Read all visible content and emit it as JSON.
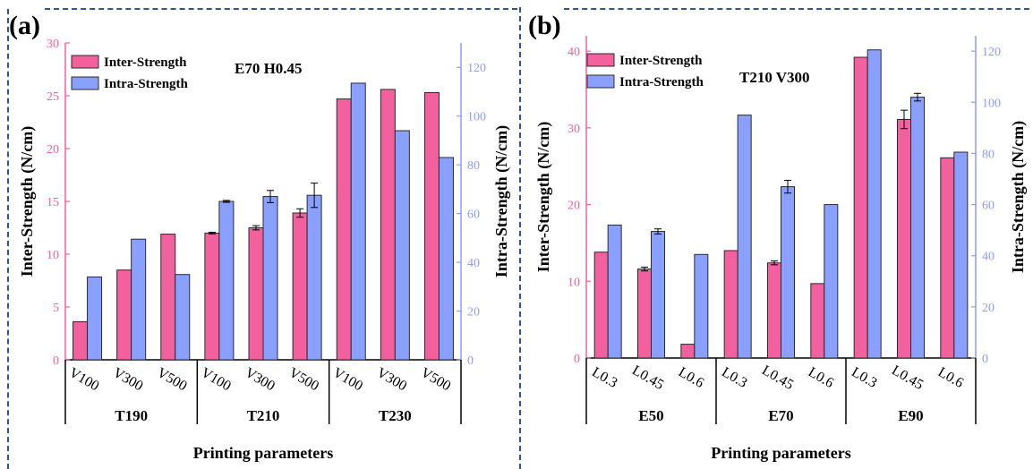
{
  "panels": [
    {
      "label": "(a)",
      "annotation": "E70 H0.45"
    },
    {
      "label": "(b)",
      "annotation": "T210 V300"
    }
  ],
  "colors": {
    "inter": "#f2609d",
    "intra": "#8aa0ff",
    "bar_edge": "#2b2b2b",
    "left_axis": "#f060a0",
    "right_axis": "#8c9cff",
    "frame": "#2f5597"
  },
  "chart_data": [
    {
      "type": "bar",
      "title": "",
      "annotation": "E70 H0.45",
      "xlabel": "Printing parameters",
      "ylabel_left": "Inter-Strength (N/cm)",
      "ylabel_right": "Intra-Strength (N/cm)",
      "ylim_left": [
        0,
        30
      ],
      "ylim_right": [
        0,
        130
      ],
      "yticks_left": [
        0,
        5,
        10,
        15,
        20,
        25,
        30
      ],
      "yticks_right": [
        0,
        20,
        40,
        60,
        80,
        100,
        120
      ],
      "groups": [
        "T190",
        "T210",
        "T230"
      ],
      "categories": [
        "V100",
        "V300",
        "V500",
        "V100",
        "V300",
        "V500",
        "V100",
        "V300",
        "V500"
      ],
      "legend": [
        "Inter-Strength",
        "Intra-Strength"
      ],
      "legend_position": "top-left",
      "series": [
        {
          "name": "Inter-Strength",
          "axis": "left",
          "values": [
            3.6,
            8.5,
            11.9,
            12.0,
            12.5,
            13.9,
            24.7,
            25.6,
            25.3
          ],
          "errors": [
            0,
            0,
            0,
            0.08,
            0.2,
            0.4,
            0,
            0,
            0
          ]
        },
        {
          "name": "Intra-Strength",
          "axis": "right",
          "values": [
            34,
            49.5,
            35,
            65,
            67,
            67.5,
            113.5,
            94,
            83
          ],
          "errors": [
            0,
            0,
            0,
            0.4,
            2.5,
            5.0,
            0,
            0,
            0
          ]
        }
      ]
    },
    {
      "type": "bar",
      "title": "",
      "annotation": "T210 V300",
      "xlabel": "Printing parameters",
      "ylabel_left": "Inter-Strength (N/cm)",
      "ylabel_right": "Intra-Strength (N/cm)",
      "ylim_left": [
        0,
        42
      ],
      "ylim_right": [
        0,
        126
      ],
      "yticks_left": [
        0,
        10,
        20,
        30,
        40
      ],
      "yticks_right": [
        0,
        20,
        40,
        60,
        80,
        100,
        120
      ],
      "groups": [
        "E50",
        "E70",
        "E90"
      ],
      "categories": [
        "L0.3",
        "L0.45",
        "L0.6",
        "L0.3",
        "L0.45",
        "L0.6",
        "L0.3",
        "L0.45",
        "L0.6"
      ],
      "legend": [
        "Inter-Strength",
        "Intra-Strength"
      ],
      "legend_position": "top-left",
      "series": [
        {
          "name": "Inter-Strength",
          "axis": "left",
          "values": [
            13.8,
            11.6,
            1.8,
            14.0,
            12.4,
            9.7,
            39.2,
            31.1,
            26.1
          ],
          "errors": [
            0,
            0.25,
            0,
            0,
            0.25,
            0,
            0,
            1.2,
            0
          ]
        },
        {
          "name": "Intra-Strength",
          "axis": "right",
          "values": [
            52,
            49.5,
            40.5,
            95,
            67,
            60,
            120.5,
            102,
            80.5
          ],
          "errors": [
            0,
            1.0,
            0,
            0,
            2.5,
            0,
            0,
            1.5,
            0
          ]
        }
      ]
    }
  ]
}
